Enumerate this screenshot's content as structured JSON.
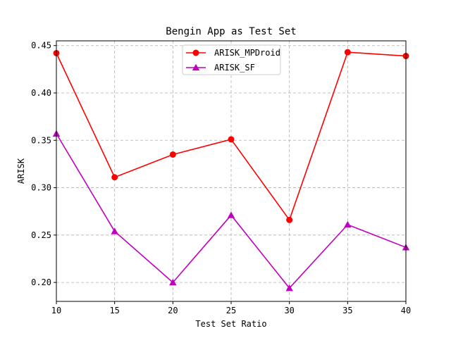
{
  "chart_data": {
    "type": "line",
    "title": "Bengin App as Test Set",
    "xlabel": "Test Set Ratio",
    "ylabel": "ARISK",
    "x": [
      10,
      15,
      20,
      25,
      30,
      35,
      40
    ],
    "xlim": [
      10,
      40
    ],
    "ylim": [
      0.18,
      0.455
    ],
    "xticks": [
      10,
      15,
      20,
      25,
      30,
      35,
      40
    ],
    "yticks": [
      0.2,
      0.25,
      0.3,
      0.35,
      0.4,
      0.45
    ],
    "grid": true,
    "legend_position": "top-center",
    "series": [
      {
        "name": "ARISK_MPDroid",
        "color": "#ff0000",
        "marker": "circle",
        "values": [
          0.442,
          0.311,
          0.335,
          0.351,
          0.266,
          0.443,
          0.439
        ]
      },
      {
        "name": "ARISK_SF",
        "color": "#bf00bf",
        "marker": "triangle",
        "values": [
          0.357,
          0.254,
          0.2,
          0.271,
          0.194,
          0.261,
          0.237
        ]
      }
    ]
  }
}
